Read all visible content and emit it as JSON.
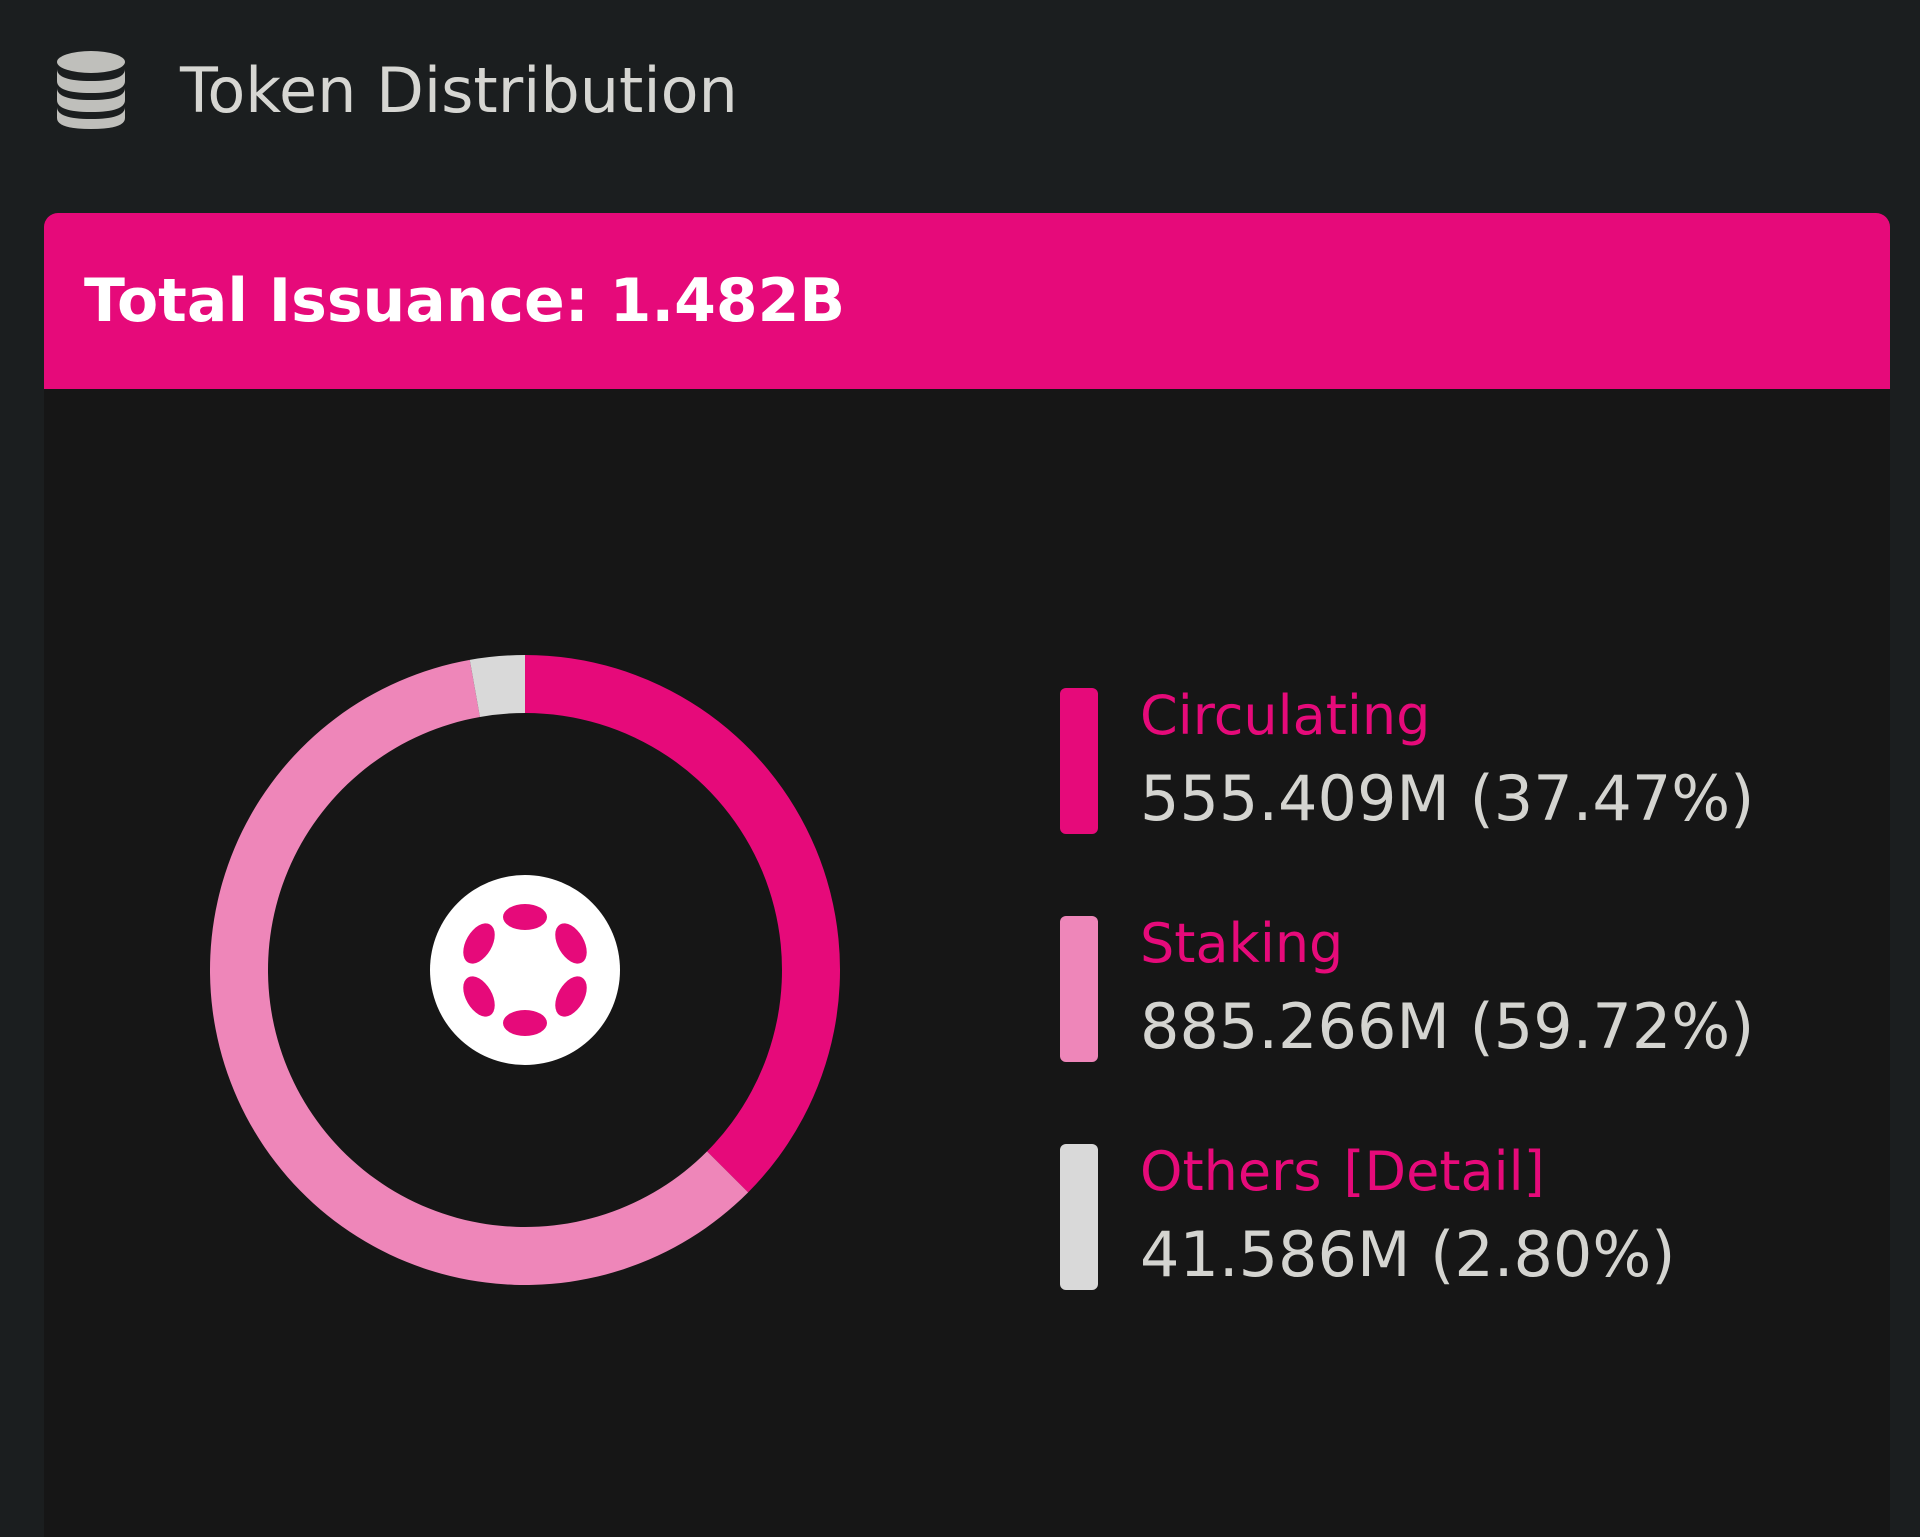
{
  "section": {
    "title": "Token Distribution",
    "icon": "database-icon"
  },
  "card": {
    "header": "Total Issuance: 1.482B"
  },
  "colors": {
    "accent": "#e60a7a",
    "circulating": "#e60a7a",
    "staking": "#ee86b9",
    "others": "#d9d9d9"
  },
  "legend": [
    {
      "label": "Circulating",
      "value": "555.409M (37.47%)"
    },
    {
      "label": "Staking",
      "value": "885.266M (59.72%)"
    },
    {
      "label": "Others",
      "detail": "[Detail]",
      "value": "41.586M (2.80%)"
    }
  ],
  "chart_data": {
    "type": "pie",
    "categories": [
      "Circulating",
      "Staking",
      "Others"
    ],
    "values": [
      555.409,
      885.266,
      41.586
    ],
    "percentages": [
      37.47,
      59.72,
      2.8
    ],
    "title": "Total Issuance: 1.482B",
    "center_icon": "polkadot-logo-icon"
  }
}
